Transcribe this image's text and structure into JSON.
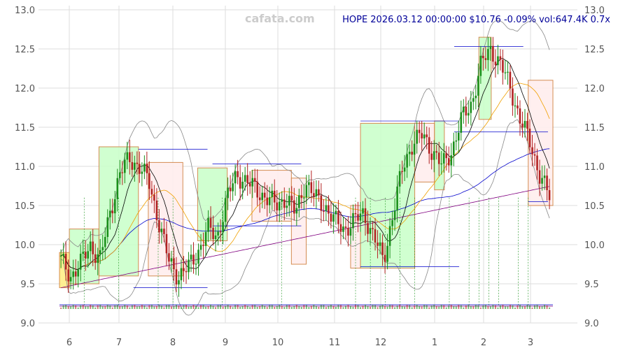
{
  "header": {
    "watermark": "cafata.com",
    "quote": "HOPE 2026.03.12 00:00:00 $10.76 -0.09% vol:647.4K 0.7x"
  },
  "chart_data": {
    "type": "candlestick",
    "symbol": "HOPE",
    "y_ticks": [
      "13.0",
      "12.5",
      "12.0",
      "11.5",
      "11.0",
      "10.5",
      "10.0",
      "9.5",
      "9.0"
    ],
    "y_values": [
      13.0,
      12.5,
      12.0,
      11.5,
      11.0,
      10.5,
      10.0,
      9.5,
      9.0
    ],
    "ylim": [
      9.0,
      13.0
    ],
    "x_ticks": [
      "6",
      "7",
      "8",
      "9",
      "10",
      "11",
      "12",
      "1",
      "2",
      "3"
    ],
    "grid": true,
    "colors": {
      "up": "#1a8f1a",
      "down": "#b22222",
      "ma_fast": "#000000",
      "ma_mid": "#f0a000",
      "ma_slow": "#0000cc",
      "ma_long": "#800080",
      "band": "#888888",
      "box_up": "#ccffcc",
      "box_down": "#ffeeee",
      "box_flat": "#ffee88"
    },
    "last_close": 10.76,
    "price_path": [
      9.8,
      9.6,
      9.75,
      10.0,
      9.8,
      10.4,
      10.9,
      11.1,
      11.0,
      10.8,
      10.3,
      9.8,
      9.6,
      9.7,
      9.9,
      10.2,
      10.1,
      10.6,
      10.9,
      10.8,
      10.7,
      10.6,
      10.5,
      10.6,
      10.4,
      10.8,
      10.6,
      10.5,
      10.3,
      10.2,
      10.3,
      10.4,
      10.1,
      9.8,
      10.4,
      11.0,
      11.3,
      11.4,
      11.2,
      11.0,
      11.2,
      11.6,
      11.8,
      12.3,
      12.5,
      12.3,
      12.0,
      11.6,
      11.3,
      10.9,
      10.6
    ],
    "boxes": [
      {
        "from": 0.0,
        "to": 0.02,
        "low": 9.45,
        "high": 9.9,
        "kind": "flat"
      },
      {
        "from": 0.02,
        "to": 0.08,
        "low": 9.5,
        "high": 10.2,
        "kind": "up"
      },
      {
        "from": 0.08,
        "to": 0.16,
        "low": 9.6,
        "high": 11.25,
        "kind": "up"
      },
      {
        "from": 0.18,
        "to": 0.25,
        "low": 9.6,
        "high": 11.05,
        "kind": "down"
      },
      {
        "from": 0.28,
        "to": 0.34,
        "low": 10.05,
        "high": 10.98,
        "kind": "up"
      },
      {
        "from": 0.39,
        "to": 0.47,
        "low": 10.3,
        "high": 10.95,
        "kind": "down"
      },
      {
        "from": 0.47,
        "to": 0.5,
        "low": 9.75,
        "high": 10.85,
        "kind": "down"
      },
      {
        "from": 0.59,
        "to": 0.61,
        "low": 9.7,
        "high": 10.5,
        "kind": "down"
      },
      {
        "from": 0.61,
        "to": 0.72,
        "low": 9.7,
        "high": 11.55,
        "kind": "up"
      },
      {
        "from": 0.72,
        "to": 0.76,
        "low": 10.8,
        "high": 11.55,
        "kind": "down"
      },
      {
        "from": 0.76,
        "to": 0.78,
        "low": 10.7,
        "high": 11.58,
        "kind": "up"
      },
      {
        "from": 0.85,
        "to": 0.875,
        "low": 11.6,
        "high": 12.65,
        "kind": "up"
      },
      {
        "from": 0.95,
        "to": 1.0,
        "low": 10.5,
        "high": 12.1,
        "kind": "down"
      }
    ]
  }
}
